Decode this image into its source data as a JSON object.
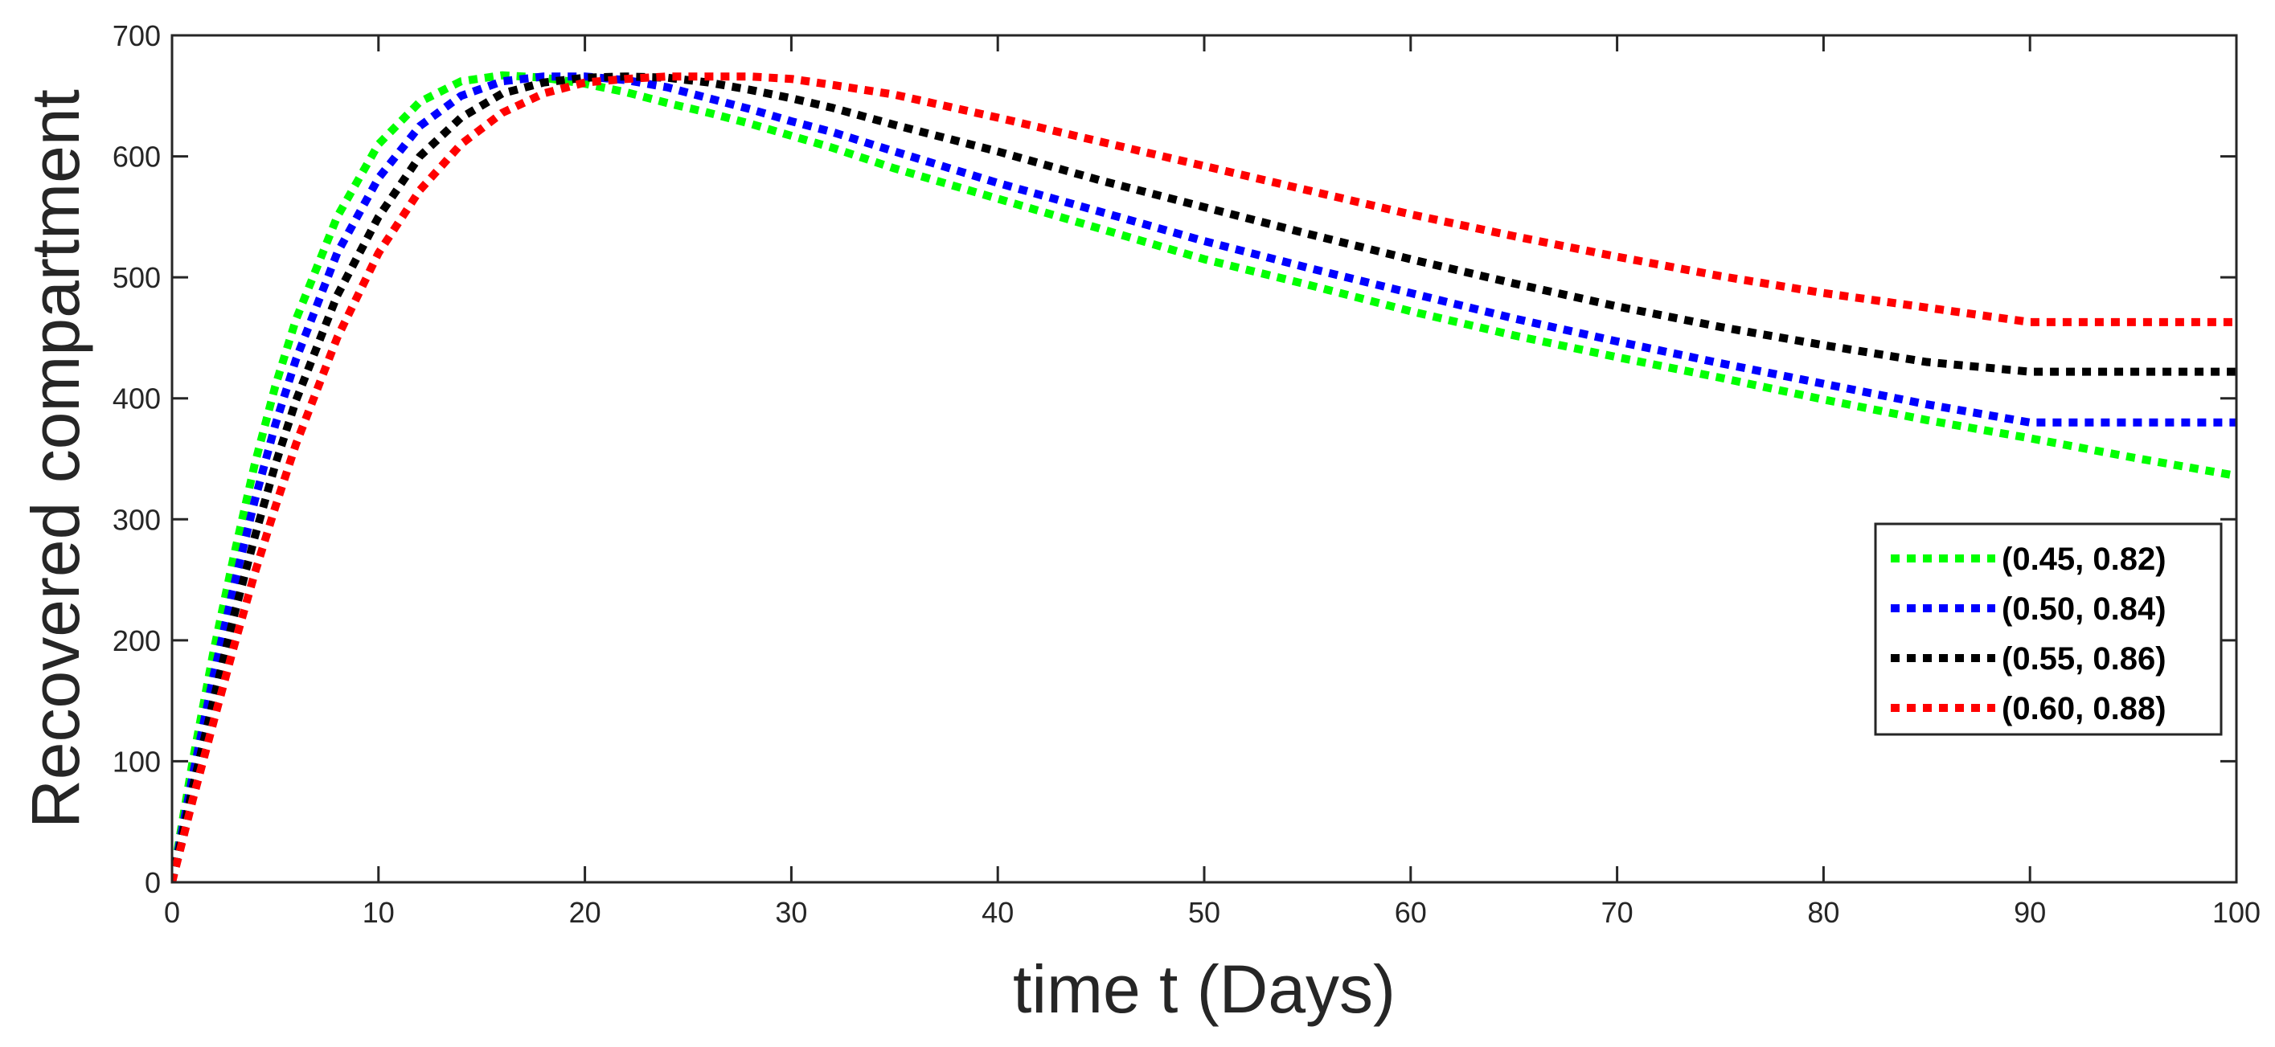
{
  "chart_data": {
    "type": "line",
    "title": "",
    "xlabel": "time t (Days)",
    "ylabel": "Recovered compartment",
    "xlim": [
      0,
      100
    ],
    "ylim": [
      0,
      700
    ],
    "xticks": [
      0,
      10,
      20,
      30,
      40,
      50,
      60,
      70,
      80,
      90,
      100
    ],
    "yticks": [
      0,
      100,
      200,
      300,
      400,
      500,
      600,
      700
    ],
    "grid": false,
    "legend_position": "right",
    "line_style": "dotted",
    "x": [
      0,
      1,
      2,
      3,
      4,
      5,
      6,
      8,
      10,
      12,
      14,
      16,
      18,
      20,
      22,
      24,
      26,
      28,
      30,
      32,
      35,
      40,
      45,
      50,
      55,
      60,
      65,
      70,
      75,
      80,
      85,
      90,
      95,
      100
    ],
    "series": [
      {
        "name": "(0.45, 0.82)",
        "color": "#00ff00",
        "values": [
          0,
          100,
          190,
          270,
          345,
          410,
          465,
          550,
          610,
          645,
          662,
          667,
          665,
          660,
          653,
          644,
          636,
          627,
          617,
          607,
          590,
          565,
          540,
          515,
          494,
          472,
          452,
          434,
          417,
          399,
          382,
          367,
          351,
          336
        ]
      },
      {
        "name": "(0.50, 0.84)",
        "color": "#0000ff",
        "values": [
          0,
          88,
          170,
          245,
          315,
          378,
          432,
          520,
          582,
          625,
          650,
          662,
          666,
          666,
          663,
          657,
          648,
          639,
          629,
          620,
          604,
          578,
          554,
          530,
          508,
          487,
          466,
          447,
          429,
          412,
          395,
          380,
          380,
          380
        ]
      },
      {
        "name": "(0.55, 0.86)",
        "color": "#000000",
        "values": [
          0,
          78,
          150,
          220,
          285,
          345,
          398,
          485,
          550,
          600,
          632,
          652,
          661,
          665,
          666,
          665,
          661,
          655,
          648,
          640,
          626,
          604,
          580,
          558,
          536,
          515,
          495,
          476,
          459,
          444,
          430,
          422,
          422,
          422
        ]
      },
      {
        "name": "(0.60, 0.88)",
        "color": "#ff0000",
        "values": [
          0,
          68,
          132,
          195,
          255,
          310,
          362,
          450,
          520,
          572,
          610,
          636,
          652,
          661,
          664,
          666,
          666,
          666,
          664,
          659,
          651,
          632,
          612,
          592,
          572,
          552,
          534,
          517,
          501,
          487,
          475,
          463,
          463,
          463
        ]
      }
    ]
  }
}
